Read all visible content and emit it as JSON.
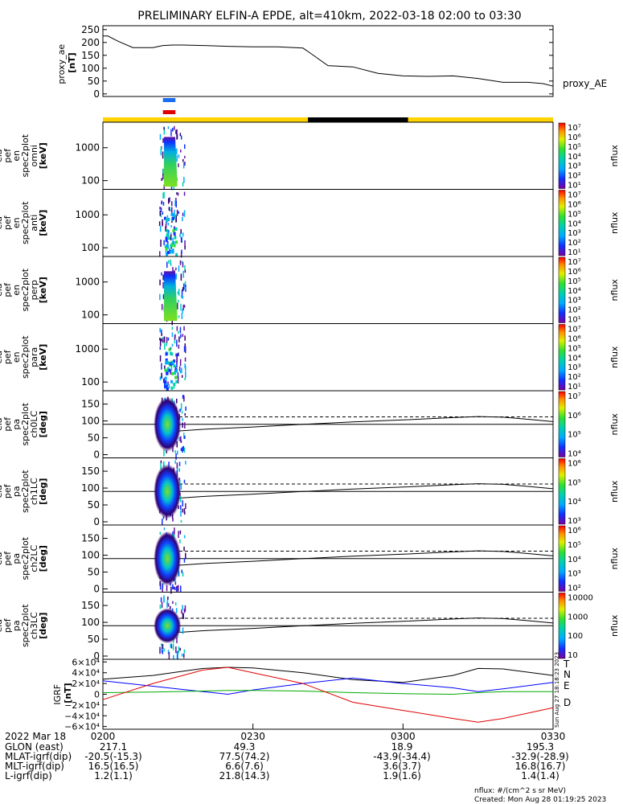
{
  "title": "PRELIMINARY ELFIN-A EPDE, alt=410km, 2022-03-18 02:00 to 03:30",
  "time": {
    "ticks": [
      "0200",
      "0230",
      "0300",
      "0330"
    ],
    "start_hhmm": "0200",
    "end_hhmm": "0330"
  },
  "proxy_ae": {
    "ylabel_lines": [
      "proxy_ae",
      "[nT]"
    ],
    "yticks": [
      0,
      50,
      100,
      150,
      200,
      250
    ],
    "ylim": [
      -10,
      265
    ],
    "legend": "proxy_AE",
    "x_minutes": [
      0,
      1,
      3,
      6,
      10,
      12,
      14,
      16,
      20,
      25,
      30,
      35,
      40,
      41,
      45,
      50,
      55,
      60,
      65,
      70,
      75,
      80,
      85,
      88,
      90
    ],
    "values": [
      225,
      225,
      205,
      180,
      180,
      188,
      190,
      190,
      188,
      185,
      183,
      183,
      178,
      165,
      110,
      105,
      80,
      70,
      68,
      70,
      60,
      45,
      45,
      40,
      30
    ]
  },
  "sci_bars": {
    "blue_color": "#1a6cf0",
    "red_color": "#e00000",
    "bar_start_min": 12.0,
    "bar_end_min": 14.5
  },
  "orbit_bar": {
    "yellow_color": "#ffd400",
    "black_color": "#000000",
    "black_start_min": 41.0,
    "black_end_min": 61.0
  },
  "panels": [
    {
      "id": "omni",
      "ylabel_lines": [
        "ela",
        "pef",
        "en",
        "spec2plot",
        "omni",
        "[keV]"
      ],
      "yticks": [
        "1000",
        "100"
      ],
      "cbar_label": "nflux",
      "cbar_ticks": [
        "10⁷",
        "10⁶",
        "10⁵",
        "10⁴",
        "10³",
        "10²",
        "10¹"
      ]
    },
    {
      "id": "anti",
      "ylabel_lines": [
        "ela",
        "pef",
        "en",
        "spec2plot",
        "anti",
        "[keV]"
      ],
      "yticks": [
        "1000",
        "100"
      ],
      "cbar_label": "nflux",
      "cbar_ticks": [
        "10⁷",
        "10⁶",
        "10⁵",
        "10⁴",
        "10³",
        "10²",
        "10¹"
      ]
    },
    {
      "id": "perp",
      "ylabel_lines": [
        "ela",
        "pef",
        "en",
        "spec2plot",
        "perp",
        "[keV]"
      ],
      "yticks": [
        "1000",
        "100"
      ],
      "cbar_label": "nflux",
      "cbar_ticks": [
        "10⁷",
        "10⁶",
        "10⁵",
        "10⁴",
        "10³",
        "10²",
        "10¹"
      ]
    },
    {
      "id": "para",
      "ylabel_lines": [
        "ela",
        "pef",
        "en",
        "spec2plot",
        "para",
        "[keV]"
      ],
      "yticks": [
        "1000",
        "100"
      ],
      "cbar_label": "nflux",
      "cbar_ticks": [
        "10⁷",
        "10⁶",
        "10⁵",
        "10⁴",
        "10³",
        "10²",
        "10¹"
      ]
    },
    {
      "id": "ch0LC",
      "ylabel_lines": [
        "ela",
        "pef",
        "pa",
        "spec2plot",
        "ch0LC",
        "[deg]"
      ],
      "yticks": [
        "150",
        "100",
        "50",
        "0"
      ],
      "cbar_label": "nflux",
      "cbar_ticks": [
        "10⁷",
        "10⁶",
        "10⁵",
        "10⁴"
      ]
    },
    {
      "id": "ch1LC",
      "ylabel_lines": [
        "ela",
        "pef",
        "pa",
        "spec2plot",
        "ch1LC",
        "[deg]"
      ],
      "yticks": [
        "150",
        "100",
        "50",
        "0"
      ],
      "cbar_label": "nflux",
      "cbar_ticks": [
        "10⁶",
        "10⁵",
        "10⁴",
        "10³"
      ]
    },
    {
      "id": "ch2LC",
      "ylabel_lines": [
        "ela",
        "pef",
        "pa",
        "spec2plot",
        "ch2LC",
        "[deg]"
      ],
      "yticks": [
        "150",
        "100",
        "50",
        "0"
      ],
      "cbar_label": "nflux",
      "cbar_ticks": [
        "10⁶",
        "10⁵",
        "10⁴",
        "10³",
        "10²"
      ]
    },
    {
      "id": "ch3LC",
      "ylabel_lines": [
        "ela",
        "pef",
        "pa",
        "spec2plot",
        "ch3LC",
        "[deg]"
      ],
      "yticks": [
        "150",
        "100",
        "50",
        "0"
      ],
      "cbar_label": "nflux",
      "cbar_ticks": [
        "10000",
        "1000",
        "100",
        "10"
      ]
    }
  ],
  "pa_lines": {
    "x_minutes": [
      13,
      15,
      20,
      30,
      40,
      50,
      60,
      70,
      75,
      80,
      85,
      90
    ],
    "solid_deg": [
      68,
      70,
      75,
      82,
      90,
      97,
      103,
      110,
      113,
      111,
      105,
      98
    ],
    "dashed_deg": [
      112,
      112,
      112,
      112,
      112,
      112,
      112,
      112,
      112,
      112,
      112,
      112
    ]
  },
  "igrf": {
    "ylabel_lines": [
      "IGRF",
      "[nT]"
    ],
    "yticks": [
      "6×10⁴",
      "4×10⁴",
      "2×10⁴",
      "0",
      "−2×10⁴",
      "−4×10⁴",
      "−6×10⁴"
    ],
    "ylim": [
      -65000,
      65000
    ],
    "x_minutes": [
      0,
      10,
      20,
      25,
      30,
      40,
      50,
      60,
      70,
      75,
      80,
      90
    ],
    "series": [
      {
        "name": "T",
        "color": "#000000",
        "values": [
          28000,
          35000,
          48000,
          50000,
          49000,
          40000,
          27000,
          22000,
          35000,
          48000,
          47000,
          35000
        ]
      },
      {
        "name": "N",
        "color": "#0000ff",
        "values": [
          25000,
          15000,
          5000,
          0,
          8000,
          20000,
          30000,
          20000,
          12000,
          5000,
          10000,
          22000
        ]
      },
      {
        "name": "E",
        "color": "#00aa00",
        "values": [
          3000,
          4000,
          6000,
          7000,
          7000,
          6000,
          3000,
          1000,
          0,
          3000,
          5000,
          5000
        ]
      },
      {
        "name": "D",
        "color": "#e00000",
        "values": [
          -10000,
          20000,
          45000,
          50000,
          40000,
          20000,
          -15000,
          -30000,
          -45000,
          -52000,
          -45000,
          -25000
        ]
      }
    ],
    "side_stamp": "Sun Aug 27 18:18:23 2023"
  },
  "ephem": {
    "date": "2022 Mar 18",
    "rows": [
      {
        "label": "GLON (east)",
        "values": [
          "217.1",
          "49.3",
          "18.9",
          "195.3"
        ]
      },
      {
        "label": "MLAT-igrf(dip)",
        "values": [
          "-20.5(-15.3)",
          "77.5(74.2)",
          "-43.9(-34.4)",
          "-32.9(-28.9)"
        ]
      },
      {
        "label": "MLT-igrf(dip)",
        "values": [
          "16.5(16.5)",
          "6.6(7.6)",
          "3.6(3.7)",
          "16.8(16.7)"
        ]
      },
      {
        "label": "L-igrf(dip)",
        "values": [
          "1.2(1.1)",
          "21.8(14.3)",
          "1.9(1.6)",
          "1.4(1.4)"
        ]
      }
    ]
  },
  "footer": {
    "units": "nflux: #/(cm^2 s sr MeV)",
    "created": "Created: Mon Aug 28 01:19:25 2023"
  }
}
